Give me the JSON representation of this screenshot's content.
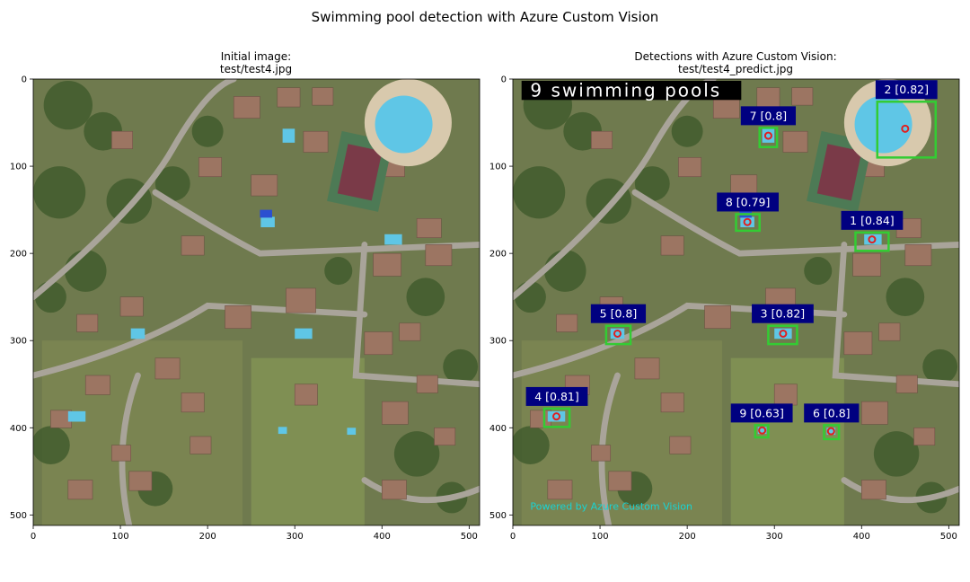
{
  "suptitle": "Swimming pool detection with Azure Custom Vision",
  "left_panel": {
    "title_line1": "Initial image:",
    "title_line2": "test/test4.jpg"
  },
  "right_panel": {
    "title_line1": "Detections with Azure Custom Vision:",
    "title_line2": "test/test4_predict.jpg",
    "banner_text": "9 swimming pools",
    "footer_text": "Powered by Azure Custom Vision"
  },
  "axes": {
    "x_ticks": [
      0,
      100,
      200,
      300,
      400,
      500
    ],
    "y_ticks": [
      0,
      100,
      200,
      300,
      400,
      500
    ],
    "x_range": [
      0,
      512
    ],
    "y_range": [
      0,
      512
    ]
  },
  "colors": {
    "box": "#33cc33",
    "label_bg": "#000080",
    "label_text": "#ffffff",
    "center_mark": "#e02020",
    "footer_text": "#19d3d3",
    "pool_water": "#5fc6e6",
    "court": "#7a3a48"
  },
  "detections": [
    {
      "label": "1 [0.84]",
      "x1": 393,
      "y1": 176,
      "x2": 431,
      "y2": 197,
      "cx": 412,
      "cy": 184
    },
    {
      "label": "2 [0.82]",
      "x1": 418,
      "y1": 26,
      "x2": 485,
      "y2": 90,
      "cx": 450,
      "cy": 57
    },
    {
      "label": "3 [0.82]",
      "x1": 293,
      "y1": 283,
      "x2": 326,
      "y2": 304,
      "cx": 310,
      "cy": 292
    },
    {
      "label": "4 [0.81]",
      "x1": 36,
      "y1": 378,
      "x2": 65,
      "y2": 399,
      "cx": 50,
      "cy": 387
    },
    {
      "label": "5 [0.8]",
      "x1": 107,
      "y1": 283,
      "x2": 135,
      "y2": 304,
      "cx": 120,
      "cy": 292
    },
    {
      "label": "6 [0.8]",
      "x1": 357,
      "y1": 397,
      "x2": 374,
      "y2": 413,
      "cx": 365,
      "cy": 404
    },
    {
      "label": "7 [0.8]",
      "x1": 283,
      "y1": 56,
      "x2": 303,
      "y2": 78,
      "cx": 293,
      "cy": 65
    },
    {
      "label": "8 [0.79]",
      "x1": 256,
      "y1": 155,
      "x2": 283,
      "y2": 174,
      "cx": 269,
      "cy": 164
    },
    {
      "label": "9 [0.63]",
      "x1": 278,
      "y1": 397,
      "x2": 293,
      "y2": 411,
      "cx": 286,
      "cy": 403
    }
  ]
}
